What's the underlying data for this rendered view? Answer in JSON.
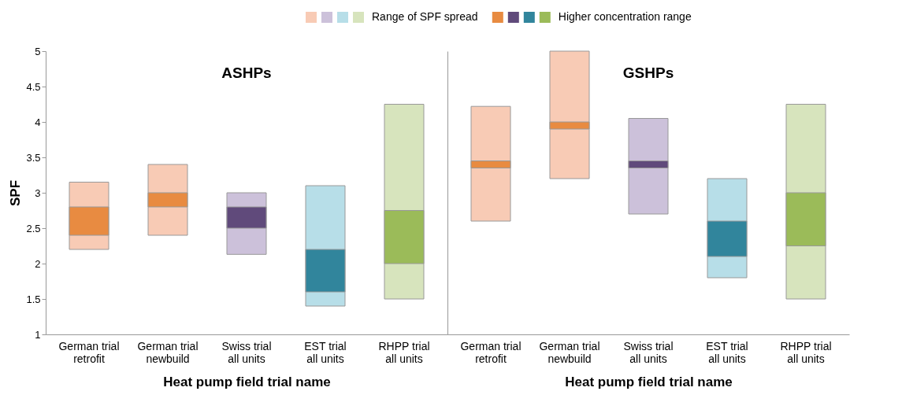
{
  "chart_data": [
    {
      "type": "bar",
      "title": "ASHPs",
      "xlabel": "Heat pump field trial name",
      "ylabel": "SPF",
      "categories": [
        "German trial\nretrofit",
        "German trial\nnewbuild",
        "Swiss trial\nall units",
        "EST trial\nall units",
        "RHPP trial\nall units"
      ],
      "series": [
        {
          "name": "Range of SPF spread",
          "colors": [
            "#f8cbb5",
            "#f8cbb5",
            "#ccc1da",
            "#b7dee8",
            "#d7e4bd"
          ],
          "base": [
            2.2,
            2.4,
            2.13,
            1.4,
            1.5
          ],
          "values": [
            0.95,
            1.0,
            0.87,
            1.7,
            2.75
          ]
        },
        {
          "name": "Higher concentration range",
          "colors": [
            "#e88b41",
            "#e88b41",
            "#604a7b",
            "#31859c",
            "#9bbb59"
          ],
          "base": [
            2.4,
            2.8,
            2.5,
            1.6,
            2.0
          ],
          "values": [
            0.4,
            0.2,
            0.3,
            0.6,
            0.75
          ]
        }
      ],
      "ylim": [
        1,
        5
      ],
      "yticks": [
        1,
        1.5,
        2,
        2.5,
        3,
        3.5,
        4,
        4.5,
        5
      ],
      "grid": false,
      "legend": "top"
    },
    {
      "type": "bar",
      "title": "GSHPs",
      "xlabel": "Heat pump field trial name",
      "categories": [
        "German trial\nretrofit",
        "German trial\nnewbuild",
        "Swiss trial\nall units",
        "EST trial\nall units",
        "RHPP trial\nall units"
      ],
      "series": [
        {
          "colors": [
            "#f8cbb5",
            "#f8cbb5",
            "#ccc1da",
            "#b7dee8",
            "#d7e4bd"
          ],
          "base": [
            2.6,
            3.2,
            2.7,
            1.8,
            1.5
          ],
          "values": [
            1.62,
            1.8,
            1.35,
            1.4,
            2.75
          ]
        },
        {
          "colors": [
            "#e88b41",
            "#e88b41",
            "#604a7b",
            "#31859c",
            "#9bbb59"
          ],
          "base": [
            3.35,
            3.9,
            3.35,
            2.1,
            2.25
          ],
          "values": [
            0.1,
            0.1,
            0.1,
            0.5,
            0.75
          ]
        }
      ],
      "ylim": [
        1,
        5
      ],
      "yticks": [
        1,
        1.5,
        2,
        2.5,
        3,
        3.5,
        4,
        4.5,
        5
      ],
      "grid": false,
      "tick_labels": "x"
    }
  ]
}
